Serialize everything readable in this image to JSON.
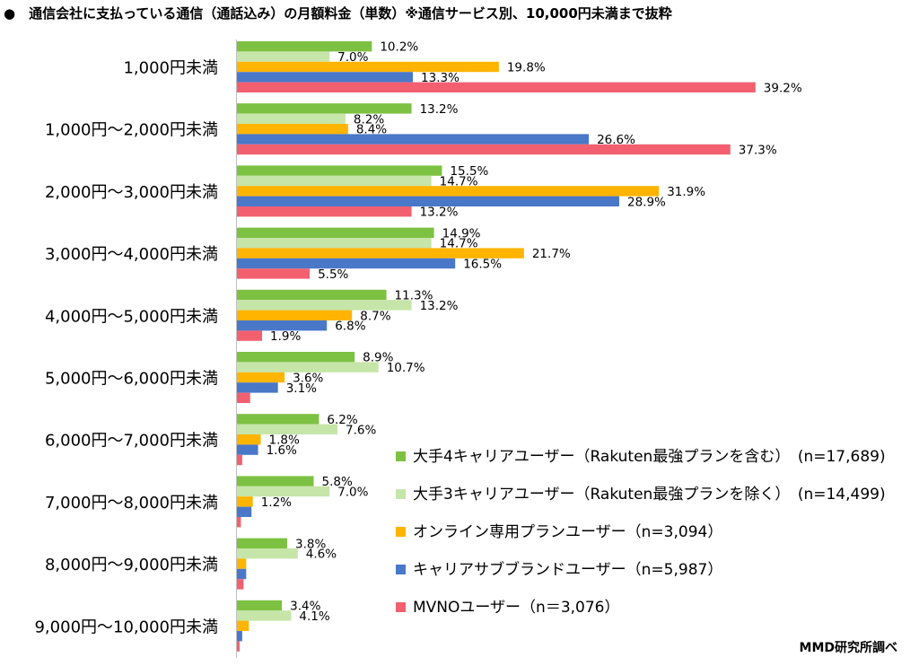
{
  "title": "●　通信会社に支払っている通信（通話込み）の月額料金（単数）※通信サービス別、10,000円未満まで抜粋",
  "source": "MMD研究所調べ",
  "chart_data": {
    "type": "bar",
    "orientation": "horizontal",
    "categories": [
      "1,000円未満",
      "1,000円～2,000円未満",
      "2,000円～3,000円未満",
      "3,000円～4,000円未満",
      "4,000円～5,000円未満",
      "5,000円～6,000円未満",
      "6,000円～7,000円未満",
      "7,000円～8,000円未満",
      "8,000円～9,000円未満",
      "9,000円～10,000円未満"
    ],
    "series": [
      {
        "name": "大手4キャリアユーザー（Rakuten最強プランを含む）　(n=17,689)",
        "color": "#7dc142",
        "values": [
          10.2,
          13.2,
          15.5,
          14.9,
          11.3,
          8.9,
          6.2,
          5.8,
          3.8,
          3.4
        ],
        "labels": [
          "10.2%",
          "13.2%",
          "15.5%",
          "14.9%",
          "11.3%",
          "8.9%",
          "6.2%",
          "5.8%",
          "3.8%",
          "3.4%"
        ]
      },
      {
        "name": "大手3キャリアユーザー（Rakuten最強プランを除く）　(n=14,499)",
        "color": "#c6e5a8",
        "values": [
          7.0,
          8.2,
          14.7,
          14.7,
          13.2,
          10.7,
          7.6,
          7.0,
          4.6,
          4.1
        ],
        "labels": [
          "7.0%",
          "8.2%",
          "14.7%",
          "14.7%",
          "13.2%",
          "10.7%",
          "7.6%",
          "7.0%",
          "4.6%",
          "4.1%"
        ]
      },
      {
        "name": "オンライン専用プランユーザー（n=3,094）",
        "color": "#ffb400",
        "values": [
          19.8,
          8.4,
          31.9,
          21.7,
          8.7,
          3.6,
          1.8,
          1.2,
          0.7,
          0.9
        ],
        "labels": [
          "19.8%",
          "8.4%",
          "31.9%",
          "21.7%",
          "8.7%",
          "3.6%",
          "1.8%",
          "1.2%",
          "",
          ""
        ]
      },
      {
        "name": "キャリアサブブランドユーザー（n=5,987）",
        "color": "#4a78c8",
        "values": [
          13.3,
          26.6,
          28.9,
          16.5,
          6.8,
          3.1,
          1.6,
          1.1,
          0.7,
          0.4
        ],
        "labels": [
          "13.3%",
          "26.6%",
          "28.9%",
          "16.5%",
          "6.8%",
          "3.1%",
          "1.6%",
          "",
          "",
          ""
        ]
      },
      {
        "name": "MVNOユーザー（n＝3,076）",
        "color": "#f26070",
        "values": [
          39.2,
          37.3,
          13.2,
          5.5,
          1.9,
          1.0,
          0.4,
          0.3,
          0.5,
          0.2
        ],
        "labels": [
          "39.2%",
          "37.3%",
          "13.2%",
          "5.5%",
          "1.9%",
          "",
          "",
          "",
          "",
          ""
        ]
      }
    ],
    "value_unit": "%",
    "legend_position": "lower-right",
    "grid": false
  }
}
